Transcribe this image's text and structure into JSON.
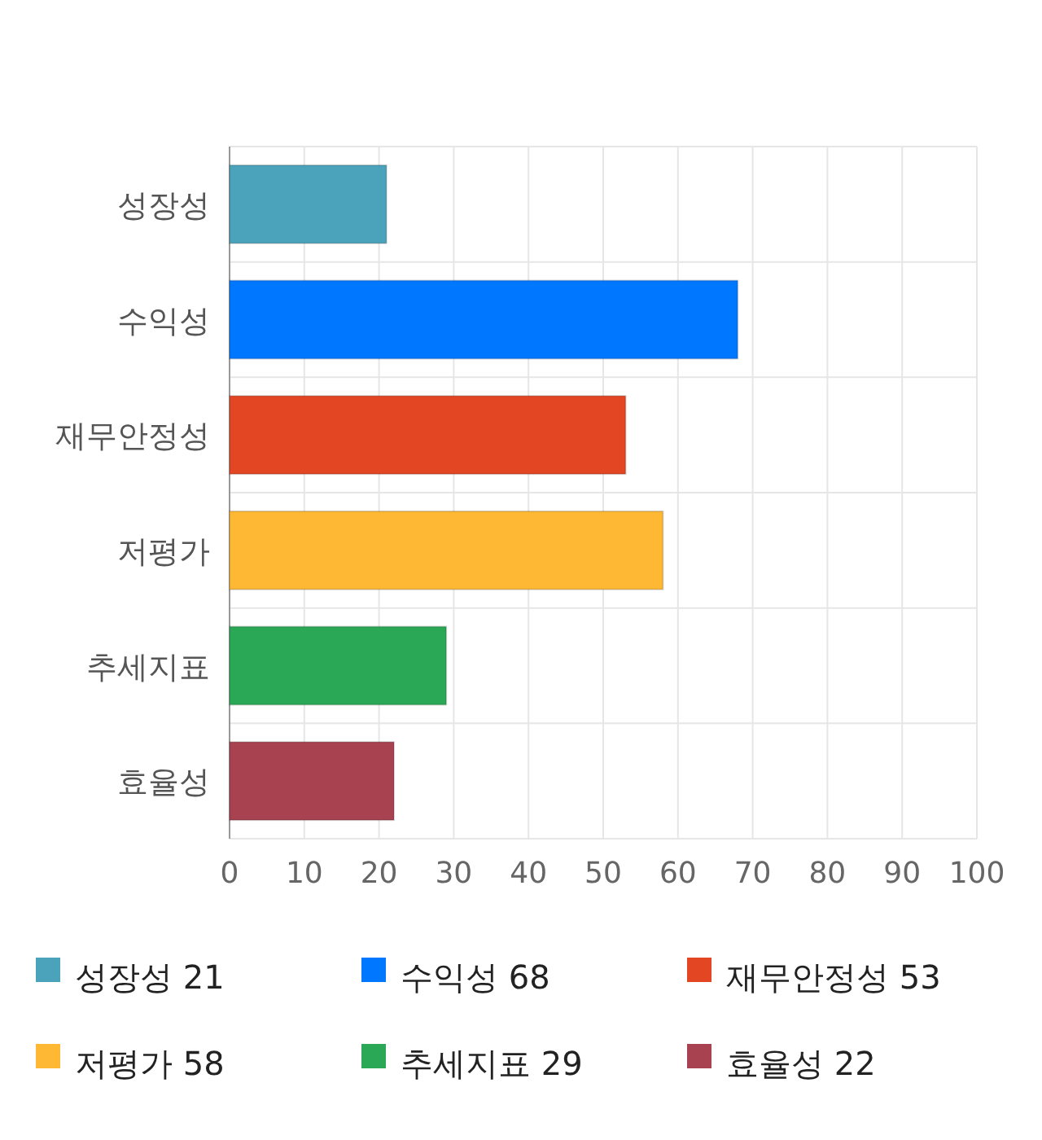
{
  "chart_data": {
    "type": "bar",
    "orientation": "horizontal",
    "categories": [
      "성장성",
      "수익성",
      "재무안정성",
      "저평가",
      "추세지표",
      "효율성"
    ],
    "values": [
      21,
      68,
      53,
      58,
      29,
      22
    ],
    "colors": [
      "#4aa3ba",
      "#0077ff",
      "#e34623",
      "#ffb833",
      "#2aa855",
      "#a84150"
    ],
    "xlim": [
      0,
      100
    ],
    "xticks": [
      0,
      10,
      20,
      30,
      40,
      50,
      60,
      70,
      80,
      90,
      100
    ],
    "grid": true,
    "annotations": [
      "성장성 21",
      "수익성 68",
      "재무안정성 53",
      "저평가 58",
      "추세지표 29",
      "효율성 22"
    ]
  }
}
